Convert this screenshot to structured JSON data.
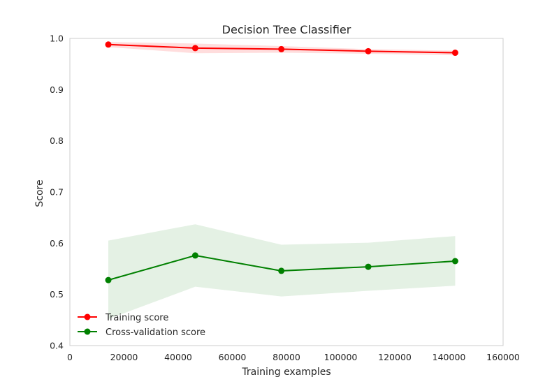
{
  "chart_data": {
    "type": "line",
    "title": "Decision Tree Classifier",
    "xlabel": "Training examples",
    "ylabel": "Score",
    "xlim": [
      0,
      160000
    ],
    "ylim": [
      0.4,
      1.0
    ],
    "xticks": [
      0,
      20000,
      40000,
      60000,
      80000,
      100000,
      120000,
      140000,
      160000
    ],
    "xtick_labels": [
      "0",
      "20000",
      "40000",
      "60000",
      "80000",
      "100000",
      "120000",
      "140000",
      "160000"
    ],
    "yticks": [
      0.4,
      0.5,
      0.6,
      0.7,
      0.8,
      0.9,
      1.0
    ],
    "ytick_labels": [
      "0.4",
      "0.5",
      "0.6",
      "0.7",
      "0.8",
      "0.9",
      "1.0"
    ],
    "grid": false,
    "legend_position": "lower-left",
    "x": [
      14200,
      46300,
      78100,
      110200,
      142300
    ],
    "series": [
      {
        "name": "Training score",
        "color": "#ff0000",
        "band_color": "#ffdddd",
        "values": [
          0.988,
          0.981,
          0.979,
          0.975,
          0.972
        ],
        "band_upper": [
          0.993,
          0.99,
          0.985,
          0.979,
          0.976
        ],
        "band_lower": [
          0.983,
          0.971,
          0.972,
          0.97,
          0.967
        ]
      },
      {
        "name": "Cross-validation score",
        "color": "#008000",
        "band_color": "#e4f1e4",
        "values": [
          0.528,
          0.576,
          0.546,
          0.554,
          0.565
        ],
        "band_upper": [
          0.605,
          0.637,
          0.597,
          0.601,
          0.614
        ],
        "band_lower": [
          0.452,
          0.515,
          0.496,
          0.507,
          0.517
        ]
      }
    ]
  }
}
